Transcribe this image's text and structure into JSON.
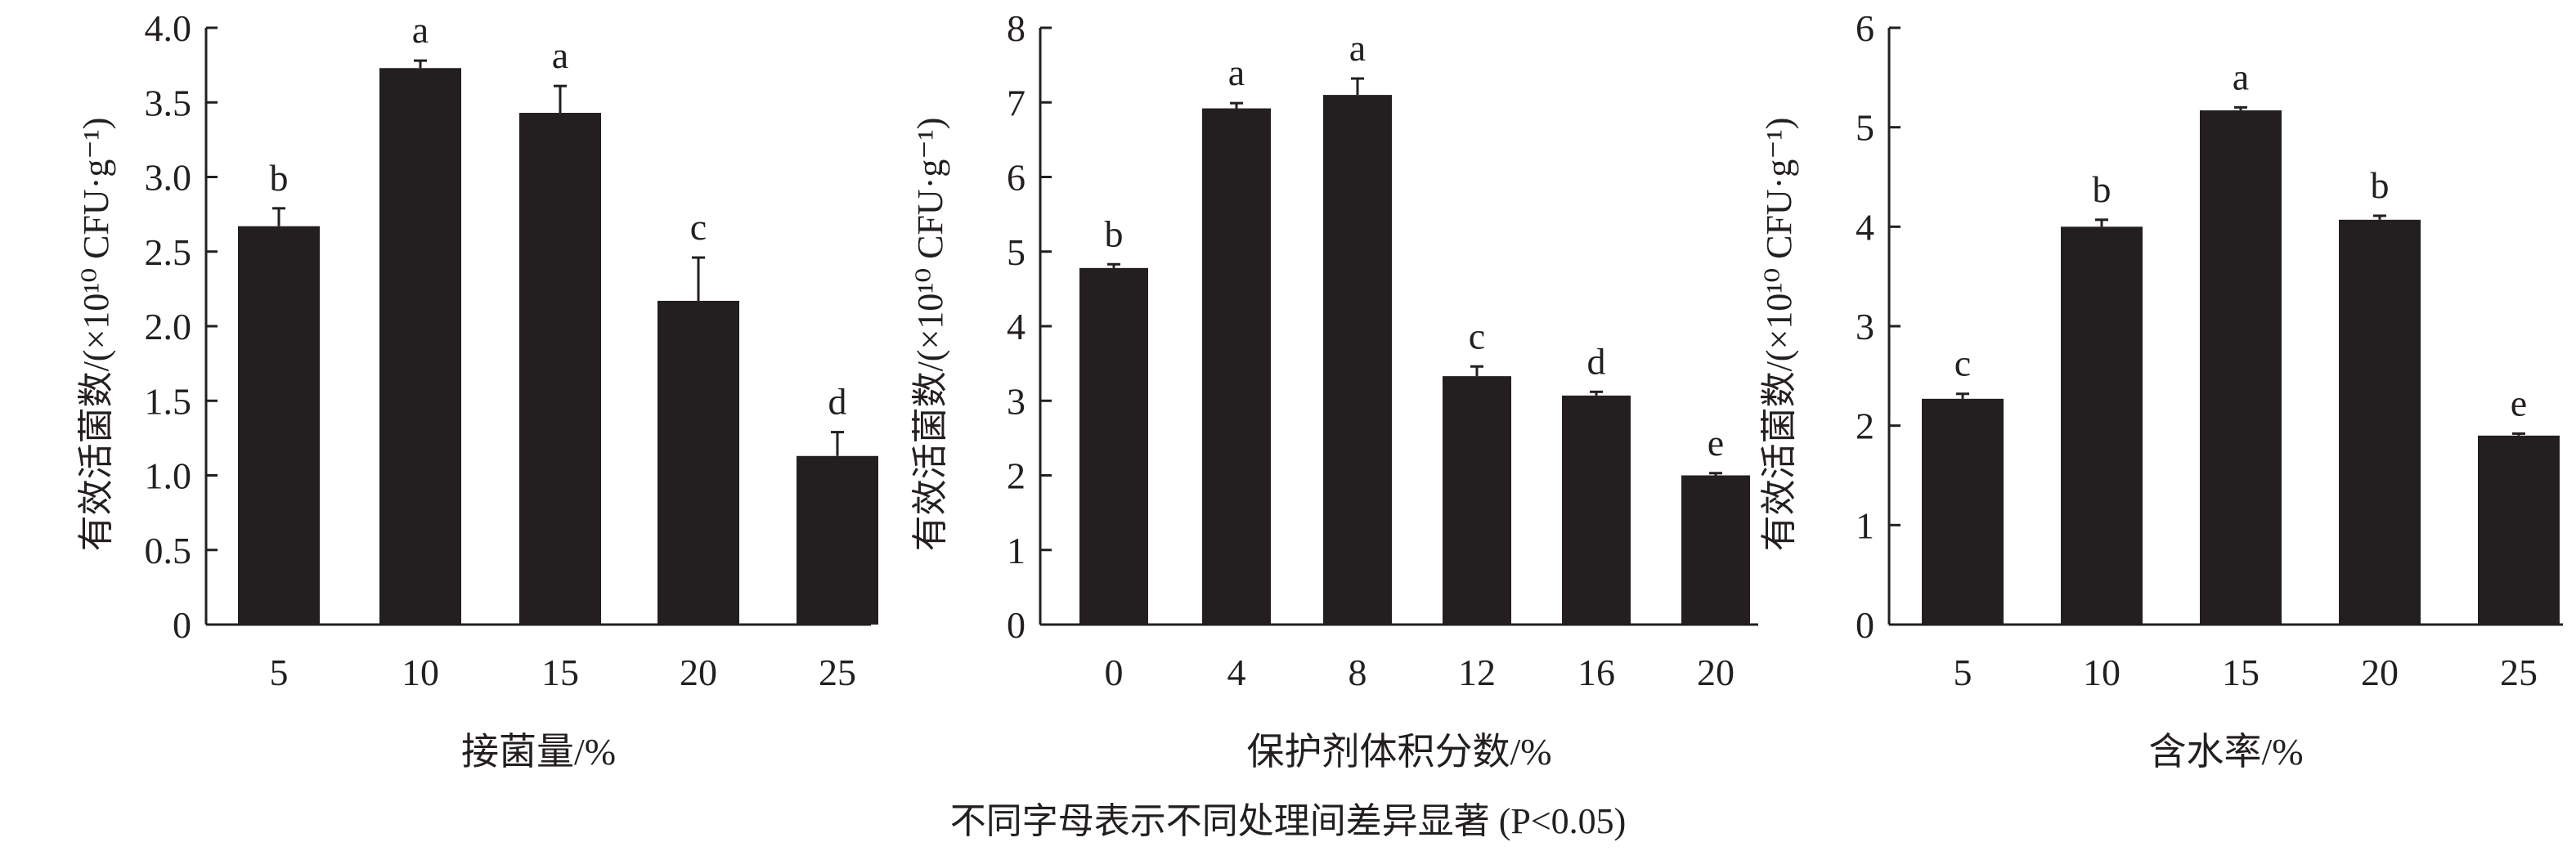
{
  "footnote": "不同字母表示不同处理间差异显著 (P<0.05)",
  "colors": {
    "bar": "#231f20",
    "axis": "#231f20"
  },
  "chart_data": [
    {
      "type": "bar",
      "xlabel": "接菌量/%",
      "ylabel": "有效活菌数/(×10¹⁰ CFU·g⁻¹)",
      "categories": [
        "5",
        "10",
        "15",
        "20",
        "25"
      ],
      "values": [
        2.67,
        3.73,
        3.43,
        2.17,
        1.13
      ],
      "errors": [
        0.12,
        0.05,
        0.18,
        0.29,
        0.16
      ],
      "letters": [
        "b",
        "a",
        "a",
        "c",
        "d"
      ],
      "ylim": [
        0,
        4.0
      ],
      "yticks": [
        "0",
        "0.5",
        "1.0",
        "1.5",
        "2.0",
        "2.5",
        "3.0",
        "3.5",
        "4.0"
      ],
      "grid": false
    },
    {
      "type": "bar",
      "xlabel": "保护剂体积分数/%",
      "ylabel": "有效活菌数/(×10¹⁰ CFU·g⁻¹)",
      "categories": [
        "0",
        "4",
        "8",
        "12",
        "16",
        "20"
      ],
      "values": [
        4.78,
        6.92,
        7.1,
        3.33,
        3.07,
        2.0
      ],
      "errors": [
        0.05,
        0.07,
        0.22,
        0.13,
        0.05,
        0.03
      ],
      "letters": [
        "b",
        "a",
        "a",
        "c",
        "d",
        "e"
      ],
      "ylim": [
        0,
        8
      ],
      "yticks": [
        "0",
        "1",
        "2",
        "3",
        "4",
        "5",
        "6",
        "7",
        "8"
      ],
      "grid": false
    },
    {
      "type": "bar",
      "xlabel": "含水率/%",
      "ylabel": "有效活菌数/(×10¹⁰ CFU·g⁻¹)",
      "categories": [
        "5",
        "10",
        "15",
        "20",
        "25"
      ],
      "values": [
        2.27,
        4.0,
        5.17,
        4.07,
        1.9
      ],
      "errors": [
        0.05,
        0.07,
        0.03,
        0.04,
        0.02
      ],
      "letters": [
        "c",
        "b",
        "a",
        "b",
        "e"
      ],
      "ylim": [
        0,
        6
      ],
      "yticks": [
        "0",
        "1",
        "2",
        "3",
        "4",
        "5",
        "6"
      ],
      "grid": false
    }
  ]
}
